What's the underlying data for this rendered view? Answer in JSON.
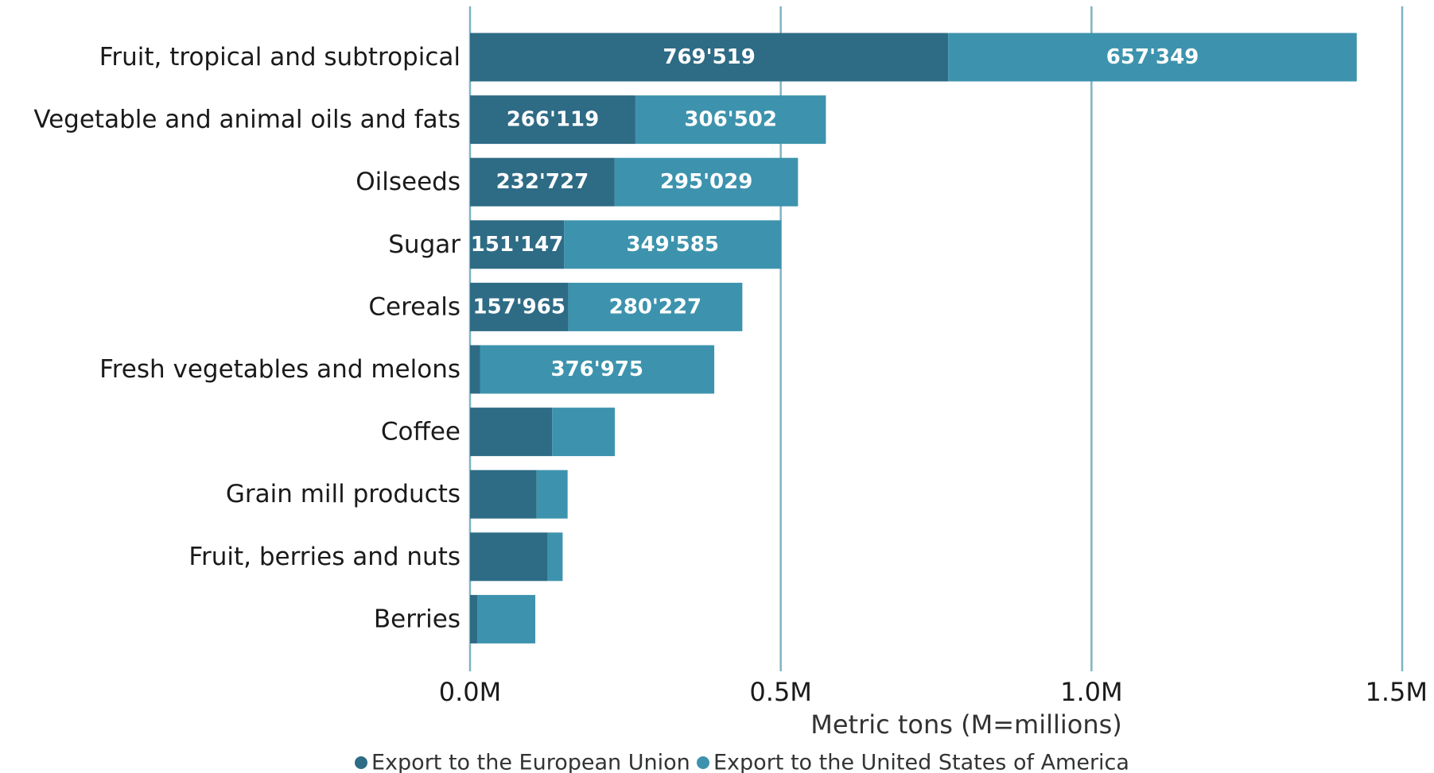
{
  "chart_data": {
    "type": "bar",
    "orientation": "horizontal",
    "stacked": true,
    "categories": [
      "Fruit, tropical and subtropical",
      "Vegetable and animal oils and fats",
      "Oilseeds",
      "Sugar",
      "Cereals",
      "Fresh vegetables and melons",
      "Coffee",
      "Grain mill products",
      "Fruit, berries and nuts",
      "Berries"
    ],
    "series": [
      {
        "name": "Export to the European Union",
        "color": "#2e6b85",
        "values": [
          769519,
          266119,
          232727,
          151147,
          157965,
          16000,
          132000,
          107000,
          125000,
          12000
        ],
        "labels": [
          "769'519",
          "266'119",
          "232'727",
          "151'147",
          "157'965",
          "",
          "",
          "",
          "",
          ""
        ]
      },
      {
        "name": "Export to the United States of America",
        "color": "#3d93ad",
        "values": [
          657349,
          306502,
          295029,
          349585,
          280227,
          376975,
          101000,
          50000,
          24000,
          93000
        ],
        "labels": [
          "657'349",
          "306'502",
          "295'029",
          "349'585",
          "280'227",
          "376'975",
          "",
          "",
          "",
          ""
        ]
      }
    ],
    "xlim": [
      0,
      1500000
    ],
    "xticks": [
      0,
      500000,
      1000000,
      1500000
    ],
    "xtick_labels": [
      "0.0M",
      "0.5M",
      "1.0M",
      "1.5M"
    ],
    "xlabel": "Metric tons (M=millions)",
    "ylabel": "",
    "title": "",
    "grid": "vertical",
    "gridline_color": "#7fb3c4",
    "legend_position": "bottom"
  }
}
